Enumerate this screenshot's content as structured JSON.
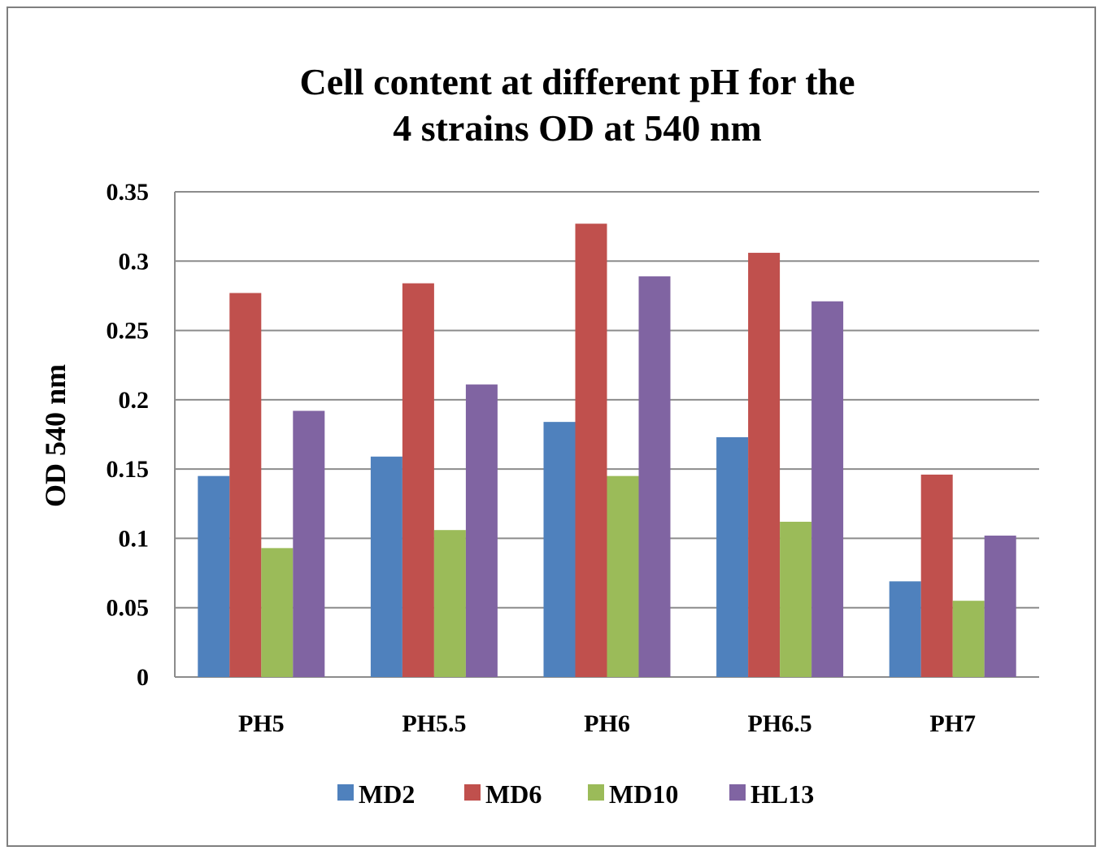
{
  "chart_data": {
    "type": "bar",
    "title_lines": [
      "Cell content at different pH for the",
      "4 strains OD at 540 nm"
    ],
    "xlabel": "",
    "ylabel": "OD 540 nm",
    "categories": [
      "PH5",
      "PH5.5",
      "PH6",
      "PH6.5",
      "PH7"
    ],
    "ylim": [
      0,
      0.35
    ],
    "yticks": [
      0,
      0.05,
      0.1,
      0.15,
      0.2,
      0.25,
      0.3,
      0.35
    ],
    "ytick_labels": [
      "0",
      "0.05",
      "0.1",
      "0.15",
      "0.2",
      "0.25",
      "0.3",
      "0.35"
    ],
    "grid": true,
    "legend_position": "bottom",
    "series": [
      {
        "name": "MD2",
        "color": "#4f81bd",
        "values": [
          0.145,
          0.159,
          0.184,
          0.173,
          0.069
        ]
      },
      {
        "name": "MD6",
        "color": "#c0504d",
        "values": [
          0.277,
          0.284,
          0.327,
          0.306,
          0.146
        ]
      },
      {
        "name": "MD10",
        "color": "#9bbb59",
        "values": [
          0.093,
          0.106,
          0.145,
          0.112,
          0.055
        ]
      },
      {
        "name": "HL13",
        "color": "#8064a2",
        "values": [
          0.192,
          0.211,
          0.289,
          0.271,
          0.102
        ]
      }
    ]
  }
}
